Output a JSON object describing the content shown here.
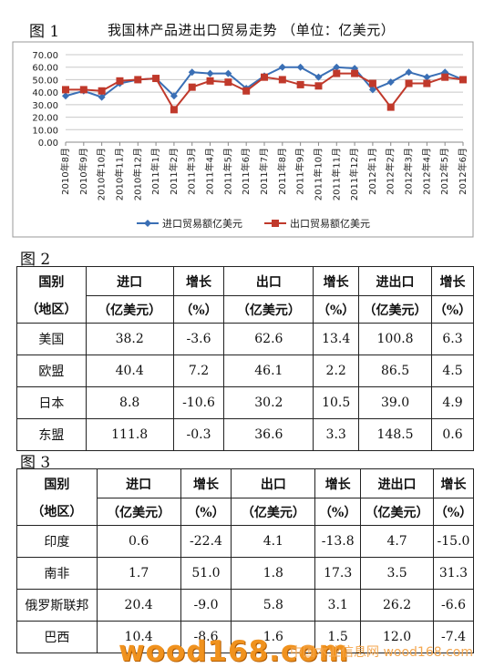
{
  "figure1": {
    "label": "图 1",
    "title": "我国林产品进出口贸易走势 （单位：亿美元）"
  },
  "chart_data": {
    "type": "line",
    "title": "我国林产品进出口贸易走势 （单位：亿美元）",
    "ylim": [
      0,
      70
    ],
    "yticks": [
      "70.00",
      "60.00",
      "50.00",
      "40.00",
      "30.00",
      "20.00",
      "10.00",
      "0.00"
    ],
    "categories": [
      "2010年8月",
      "2010年9月",
      "2010年10月",
      "2010年11月",
      "2010年12月",
      "2011年1月",
      "2011年2月",
      "2011年3月",
      "2011年4月",
      "2011年5月",
      "2011年6月",
      "2011年7月",
      "2011年8月",
      "2011年9月",
      "2011年10月",
      "2011年11月",
      "2011年12月",
      "2012年1月",
      "2012年2月",
      "2012年3月",
      "2012年4月",
      "2012年5月",
      "2012年6月"
    ],
    "series": [
      {
        "name": "进口贸易额亿美元",
        "color": "#3a6fb5",
        "marker": "diamond",
        "values": [
          37,
          41,
          36,
          47,
          50,
          51,
          37,
          56,
          55,
          55,
          43,
          53,
          60,
          60,
          52,
          60,
          59,
          42,
          48,
          56,
          52,
          56,
          50
        ]
      },
      {
        "name": "出口贸易额亿美元",
        "color": "#c0392b",
        "marker": "square",
        "values": [
          42,
          42,
          41,
          49,
          50,
          51,
          26,
          44,
          49,
          48,
          41,
          52,
          50,
          46,
          45,
          55,
          55,
          47,
          28,
          47,
          47,
          52,
          50
        ]
      }
    ],
    "legend_position": "bottom",
    "grid": true
  },
  "figure2": {
    "label": "图 2",
    "headers_row1": [
      "国别",
      "进口",
      "增长",
      "出口",
      "增长",
      "进出口",
      "增长"
    ],
    "headers_row2": [
      "（地区）",
      "（亿美元）",
      "（%）",
      "（亿美元）",
      "（%）",
      "（亿美元）",
      "（%）"
    ],
    "rows": [
      [
        "美国",
        "38.2",
        "-3.6",
        "62.6",
        "13.4",
        "100.8",
        "6.3"
      ],
      [
        "欧盟",
        "40.4",
        "7.2",
        "46.1",
        "2.2",
        "86.5",
        "4.5"
      ],
      [
        "日本",
        "8.8",
        "-10.6",
        "30.2",
        "10.5",
        "39.0",
        "4.9"
      ],
      [
        "东盟",
        "111.8",
        "-0.3",
        "36.6",
        "3.3",
        "148.5",
        "0.6"
      ]
    ]
  },
  "figure3": {
    "label": "图 3",
    "headers_row1": [
      "国别",
      "进口",
      "增长",
      "出口",
      "增长",
      "进出口",
      "增长"
    ],
    "headers_row2": [
      "（地区）",
      "（亿美元）",
      "（%）",
      "（亿美元）",
      "（%）",
      "（亿美元）",
      "（%）"
    ],
    "rows": [
      [
        "印度",
        "0.6",
        "-22.4",
        "4.1",
        "-13.8",
        "4.7",
        "-15.0"
      ],
      [
        "南非",
        "1.7",
        "51.0",
        "1.8",
        "17.3",
        "3.5",
        "31.3"
      ],
      [
        "俄罗斯联邦",
        "20.4",
        "-9.0",
        "5.8",
        "3.1",
        "26.2",
        "-6.6"
      ],
      [
        "巴西",
        "10.4",
        "-8.6",
        "1.6",
        "1.5",
        "12.0",
        "-7.4"
      ]
    ]
  },
  "watermark": {
    "logo": "wood168.com",
    "site": "中国木业信息网 wood168.com"
  }
}
